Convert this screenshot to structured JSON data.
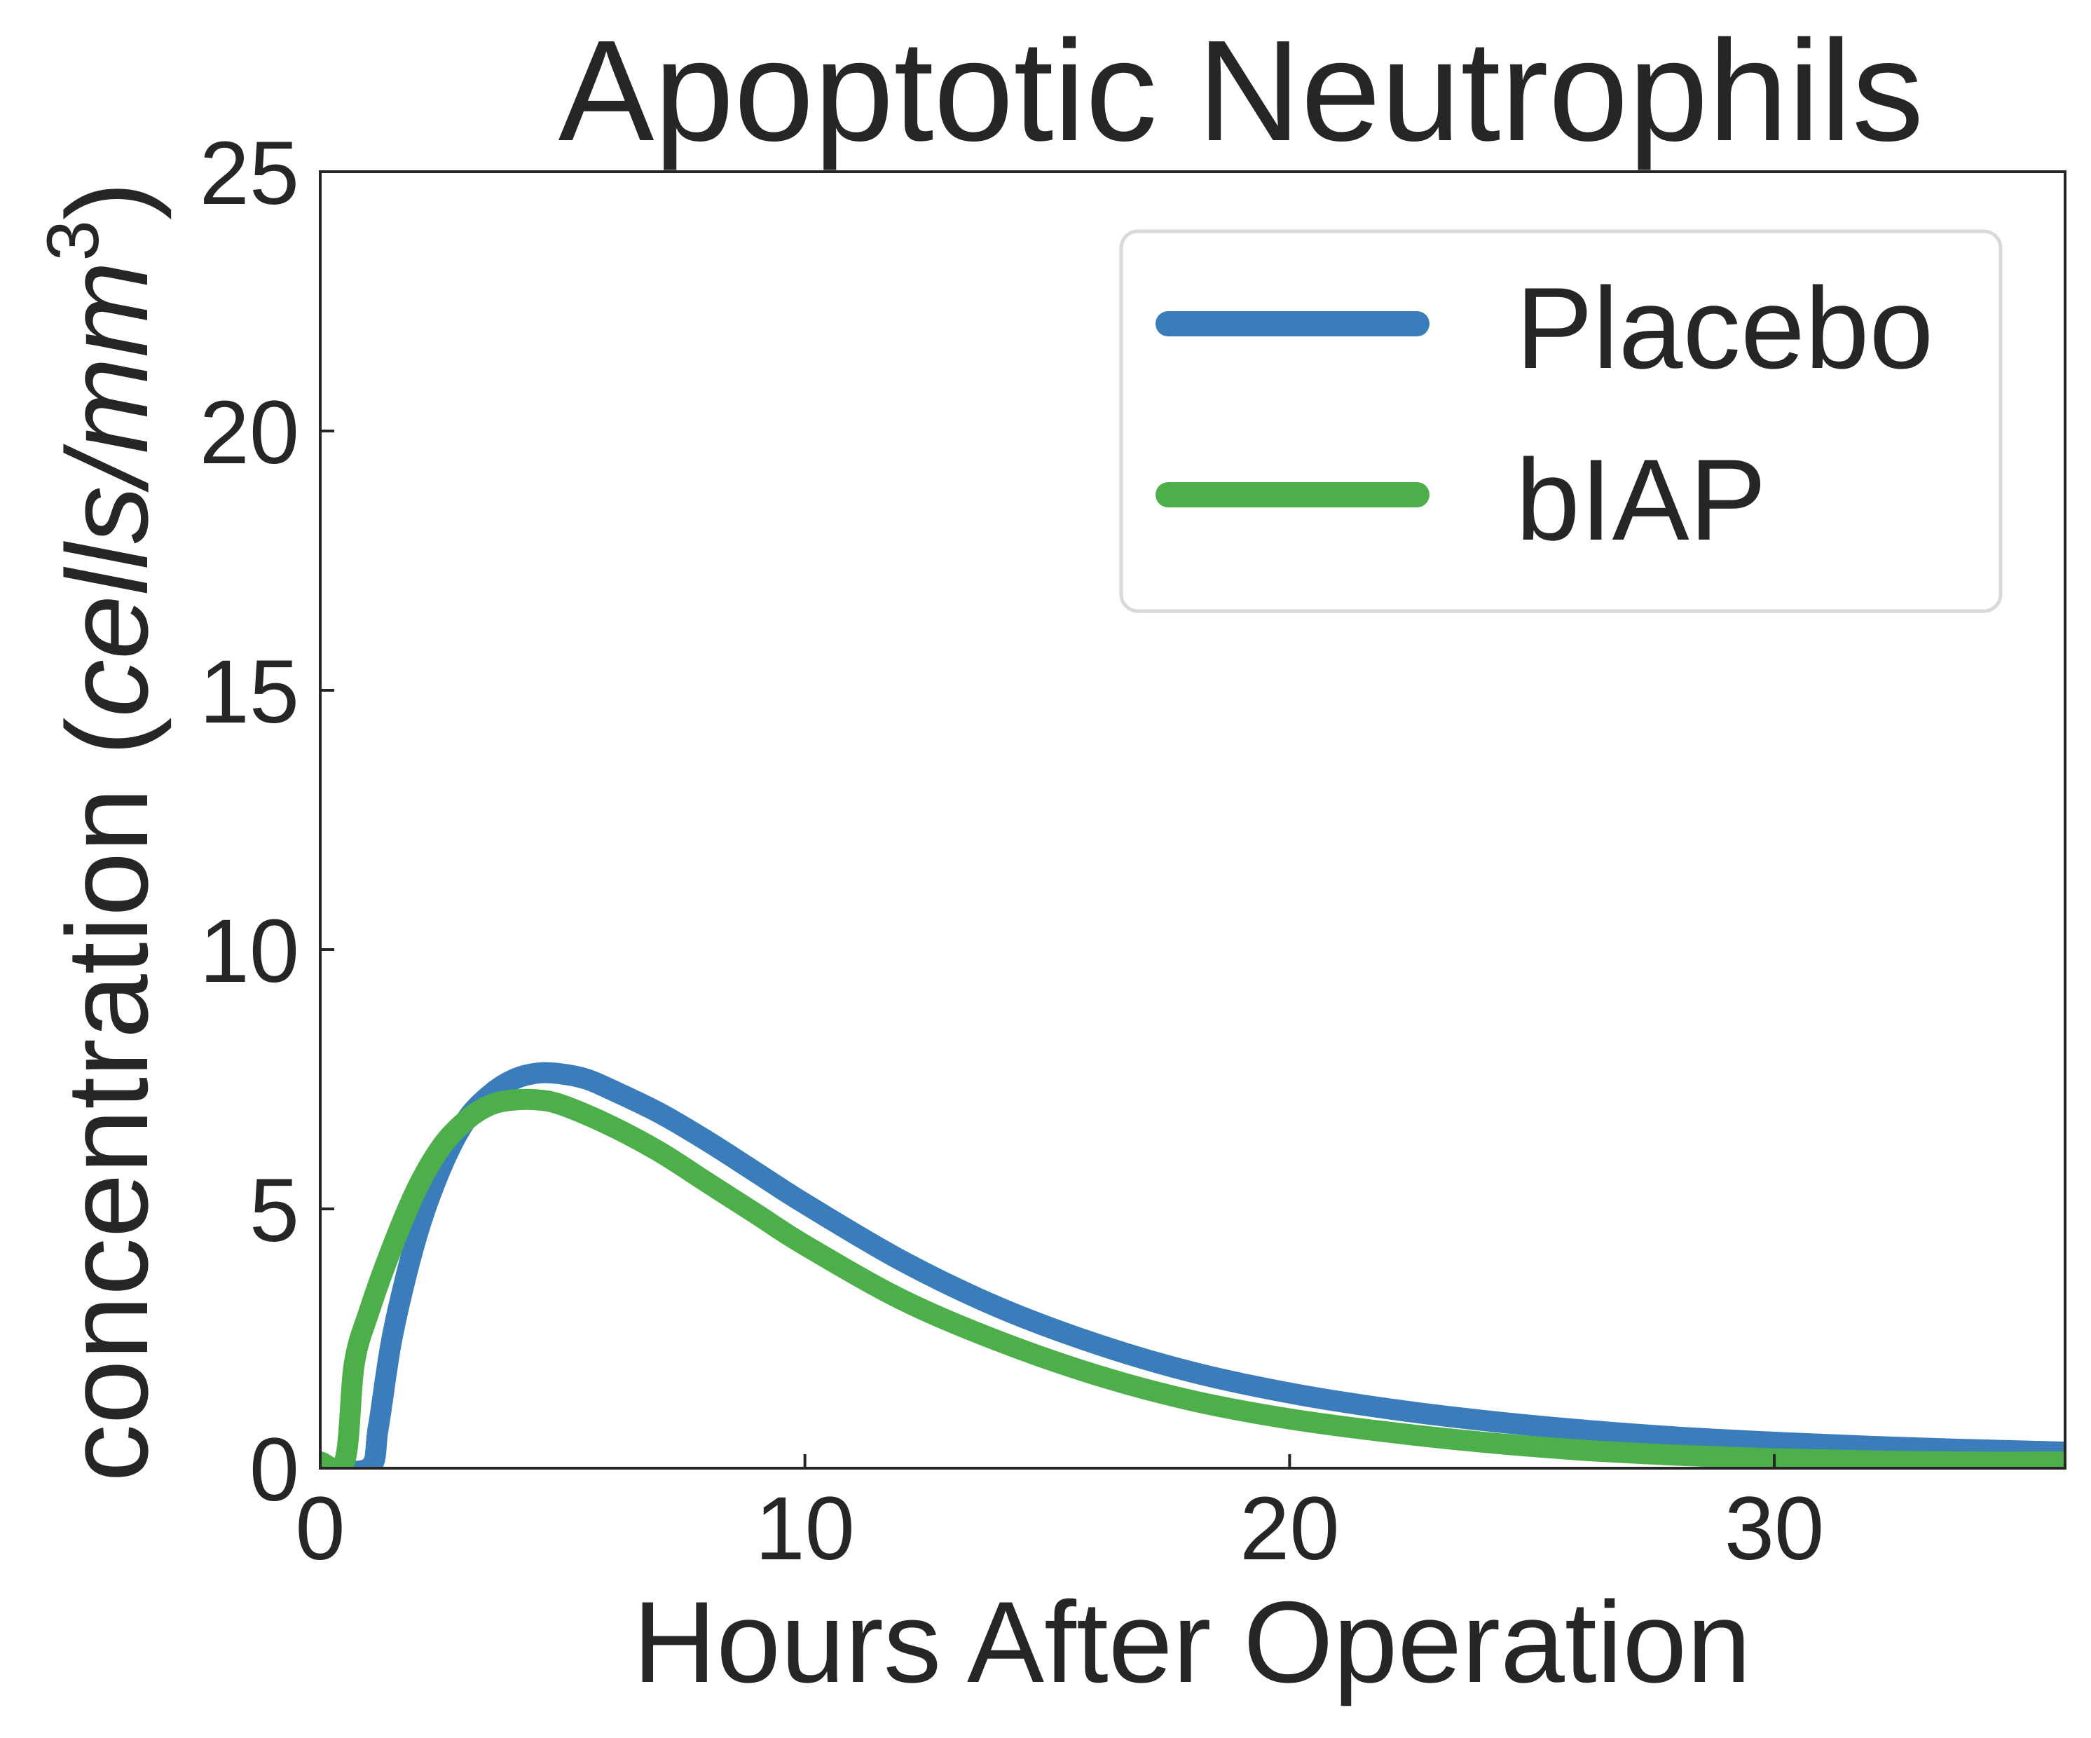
{
  "chart_data": {
    "type": "line",
    "title": "Apoptotic Neutrophils",
    "xlabel": "Hours After Operation",
    "ylabel": {
      "prefix": "concentration (",
      "italic": "cells/mm",
      "superscript": "3",
      "suffix": ")"
    },
    "xlim": [
      0,
      36
    ],
    "ylim": [
      0,
      25
    ],
    "xticks": [
      0,
      10,
      20,
      30
    ],
    "yticks": [
      0,
      5,
      10,
      15,
      20,
      25
    ],
    "grid": false,
    "legend_position": "top-right",
    "series": [
      {
        "name": "Placebo",
        "color": "#3a7dba",
        "x": [
          0,
          1.0,
          1.2,
          1.5,
          2.0,
          2.5,
          3.0,
          3.5,
          4.0,
          4.5,
          5.0,
          5.5,
          6.0,
          7.0,
          8.0,
          9.0,
          10.0,
          12.0,
          14.0,
          16.0,
          18.0,
          20.0,
          22.0,
          24.0,
          26.0,
          28.0,
          30.0,
          32.0,
          34.0,
          36.0
        ],
        "y": [
          0,
          0,
          0.8,
          2.6,
          4.5,
          5.8,
          6.7,
          7.2,
          7.5,
          7.62,
          7.6,
          7.5,
          7.3,
          6.85,
          6.3,
          5.7,
          5.1,
          4.0,
          3.1,
          2.4,
          1.85,
          1.45,
          1.15,
          0.92,
          0.74,
          0.6,
          0.5,
          0.42,
          0.36,
          0.31
        ]
      },
      {
        "name": "bIAP",
        "color": "#4caf4a",
        "x": [
          0,
          0.5,
          0.7,
          1.0,
          1.5,
          2.0,
          2.5,
          3.0,
          3.5,
          4.0,
          4.5,
          5.0,
          6.0,
          7.0,
          8.0,
          9.0,
          10.0,
          12.0,
          14.0,
          16.0,
          18.0,
          20.0,
          22.0,
          24.0,
          26.0,
          28.0,
          30.0,
          32.0,
          34.0,
          36.0
        ],
        "y": [
          0.12,
          0.12,
          2.0,
          3.0,
          4.3,
          5.4,
          6.2,
          6.7,
          7.0,
          7.1,
          7.1,
          7.0,
          6.6,
          6.1,
          5.5,
          4.9,
          4.3,
          3.25,
          2.45,
          1.8,
          1.3,
          0.95,
          0.7,
          0.5,
          0.35,
          0.25,
          0.18,
          0.14,
          0.12,
          0.12
        ]
      }
    ]
  }
}
